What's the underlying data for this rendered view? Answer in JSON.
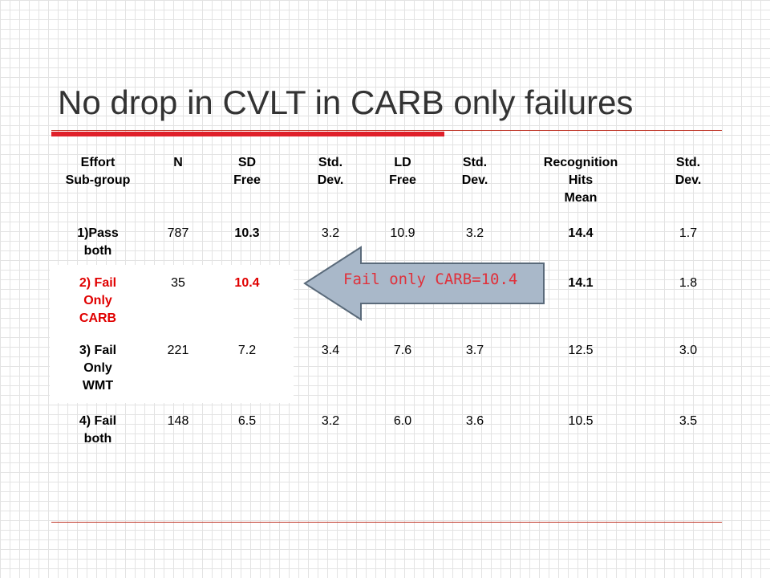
{
  "title": "No drop in CVLT in CARB only failures",
  "headers": [
    "Effort\nSub-group",
    "N",
    "SD\nFree",
    "Std.\nDev.",
    "LD\nFree",
    "Std.\nDev.",
    "Recognition\nHits\nMean",
    "Std.\nDev."
  ],
  "rows": [
    {
      "group": "1)Pass\nboth",
      "n": "787",
      "sd_free": "10.3",
      "sd_dev": "3.2",
      "ld_free": "10.9",
      "ld_dev": "3.2",
      "rec_hits": "14.4",
      "rec_dev": "1.7"
    },
    {
      "group": "2) Fail\nOnly\nCARB",
      "n": "35",
      "sd_free": "10.4",
      "sd_dev": "",
      "ld_free": "",
      "ld_dev": "",
      "rec_hits": "14.1",
      "rec_dev": "1.8"
    },
    {
      "group": "3) Fail\nOnly\nWMT",
      "n": "221",
      "sd_free": "7.2",
      "sd_dev": "3.4",
      "ld_free": "7.6",
      "ld_dev": "3.7",
      "rec_hits": "12.5",
      "rec_dev": "3.0"
    },
    {
      "group": "4) Fail\nboth",
      "n": "148",
      "sd_free": "6.5",
      "sd_dev": "3.2",
      "ld_free": "6.0",
      "ld_dev": "3.6",
      "rec_hits": "10.5",
      "rec_dev": "3.5"
    }
  ],
  "callout": "Fail only CARB=10.4",
  "colors": {
    "accent_red": "#e0202a",
    "highlight_red": "#e00000",
    "arrow_fill": "#a9b8c9",
    "arrow_stroke": "#5a6a7a"
  }
}
